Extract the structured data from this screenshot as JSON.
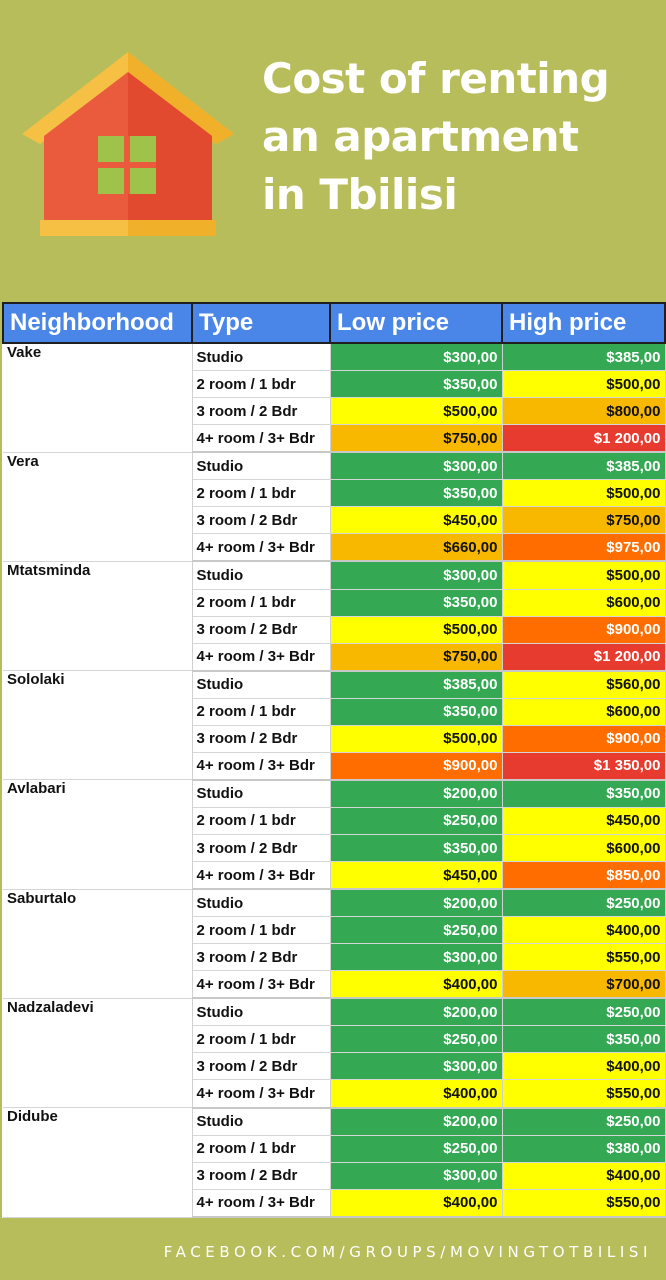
{
  "title_lines": [
    "Cost of renting",
    "an apartment",
    "in Tbilisi"
  ],
  "colors": {
    "background": "#b8bd5c",
    "header_blue": "#4a86e8",
    "green": "#34a853",
    "yellow": "#ffff00",
    "amber": "#f9b800",
    "orange": "#ff6d01",
    "red": "#e63b2e"
  },
  "icons": [
    "house-icon"
  ],
  "table": {
    "headers": [
      "Neighborhood",
      "Type",
      "Low price",
      "High price"
    ],
    "neighborhoods": [
      {
        "name": "Vake",
        "rows": [
          {
            "type": "Studio",
            "low": "$300,00",
            "low_color": "green",
            "high": "$385,00",
            "high_color": "green"
          },
          {
            "type": "2 room / 1 bdr",
            "low": "$350,00",
            "low_color": "green",
            "high": "$500,00",
            "high_color": "yellow"
          },
          {
            "type": "3 room / 2 Bdr",
            "low": "$500,00",
            "low_color": "yellow",
            "high": "$800,00",
            "high_color": "amber"
          },
          {
            "type": "4+ room / 3+ Bdr",
            "low": "$750,00",
            "low_color": "amber",
            "high": "$1 200,00",
            "high_color": "red"
          }
        ]
      },
      {
        "name": "Vera",
        "rows": [
          {
            "type": "Studio",
            "low": "$300,00",
            "low_color": "green",
            "high": "$385,00",
            "high_color": "green"
          },
          {
            "type": "2 room / 1 bdr",
            "low": "$350,00",
            "low_color": "green",
            "high": "$500,00",
            "high_color": "yellow"
          },
          {
            "type": "3 room / 2 Bdr",
            "low": "$450,00",
            "low_color": "yellow",
            "high": "$750,00",
            "high_color": "amber"
          },
          {
            "type": "4+ room / 3+ Bdr",
            "low": "$660,00",
            "low_color": "amber",
            "high": "$975,00",
            "high_color": "orange"
          }
        ]
      },
      {
        "name": "Mtatsminda",
        "rows": [
          {
            "type": "Studio",
            "low": "$300,00",
            "low_color": "green",
            "high": "$500,00",
            "high_color": "yellow"
          },
          {
            "type": "2 room / 1 bdr",
            "low": "$350,00",
            "low_color": "green",
            "high": "$600,00",
            "high_color": "yellow"
          },
          {
            "type": "3 room / 2 Bdr",
            "low": "$500,00",
            "low_color": "yellow",
            "high": "$900,00",
            "high_color": "orange"
          },
          {
            "type": "4+ room / 3+ Bdr",
            "low": "$750,00",
            "low_color": "amber",
            "high": "$1 200,00",
            "high_color": "red"
          }
        ]
      },
      {
        "name": "Sololaki",
        "rows": [
          {
            "type": "Studio",
            "low": "$385,00",
            "low_color": "green",
            "high": "$560,00",
            "high_color": "yellow"
          },
          {
            "type": "2 room / 1 bdr",
            "low": "$350,00",
            "low_color": "green",
            "high": "$600,00",
            "high_color": "yellow"
          },
          {
            "type": "3 room / 2 Bdr",
            "low": "$500,00",
            "low_color": "yellow",
            "high": "$900,00",
            "high_color": "orange"
          },
          {
            "type": "4+ room / 3+ Bdr",
            "low": "$900,00",
            "low_color": "orange",
            "high": "$1 350,00",
            "high_color": "red"
          }
        ]
      },
      {
        "name": "Avlabari",
        "rows": [
          {
            "type": "Studio",
            "low": "$200,00",
            "low_color": "green",
            "high": "$350,00",
            "high_color": "green"
          },
          {
            "type": "2 room / 1 bdr",
            "low": "$250,00",
            "low_color": "green",
            "high": "$450,00",
            "high_color": "yellow"
          },
          {
            "type": "3 room / 2 Bdr",
            "low": "$350,00",
            "low_color": "green",
            "high": "$600,00",
            "high_color": "yellow"
          },
          {
            "type": "4+ room / 3+ Bdr",
            "low": "$450,00",
            "low_color": "yellow",
            "high": "$850,00",
            "high_color": "orange"
          }
        ]
      },
      {
        "name": "Saburtalo",
        "rows": [
          {
            "type": "Studio",
            "low": "$200,00",
            "low_color": "green",
            "high": "$250,00",
            "high_color": "green"
          },
          {
            "type": "2 room / 1 bdr",
            "low": "$250,00",
            "low_color": "green",
            "high": "$400,00",
            "high_color": "yellow"
          },
          {
            "type": "3 room / 2 Bdr",
            "low": "$300,00",
            "low_color": "green",
            "high": "$550,00",
            "high_color": "yellow"
          },
          {
            "type": "4+ room / 3+ Bdr",
            "low": "$400,00",
            "low_color": "yellow",
            "high": "$700,00",
            "high_color": "amber"
          }
        ]
      },
      {
        "name": "Nadzaladevi",
        "rows": [
          {
            "type": "Studio",
            "low": "$200,00",
            "low_color": "green",
            "high": "$250,00",
            "high_color": "green"
          },
          {
            "type": "2 room / 1 bdr",
            "low": "$250,00",
            "low_color": "green",
            "high": "$350,00",
            "high_color": "green"
          },
          {
            "type": "3 room / 2 Bdr",
            "low": "$300,00",
            "low_color": "green",
            "high": "$400,00",
            "high_color": "yellow"
          },
          {
            "type": "4+ room / 3+ Bdr",
            "low": "$400,00",
            "low_color": "yellow",
            "high": "$550,00",
            "high_color": "yellow"
          }
        ]
      },
      {
        "name": "Didube",
        "rows": [
          {
            "type": "Studio",
            "low": "$200,00",
            "low_color": "green",
            "high": "$250,00",
            "high_color": "green"
          },
          {
            "type": "2 room / 1 bdr",
            "low": "$250,00",
            "low_color": "green",
            "high": "$380,00",
            "high_color": "green"
          },
          {
            "type": "3 room / 2 Bdr",
            "low": "$300,00",
            "low_color": "green",
            "high": "$400,00",
            "high_color": "yellow"
          },
          {
            "type": "4+ room / 3+ Bdr",
            "low": "$400,00",
            "low_color": "yellow",
            "high": "$550,00",
            "high_color": "yellow"
          }
        ]
      }
    ]
  },
  "footer": "FACEBOOK.COM/GROUPS/MOVINGTOTBILISI"
}
